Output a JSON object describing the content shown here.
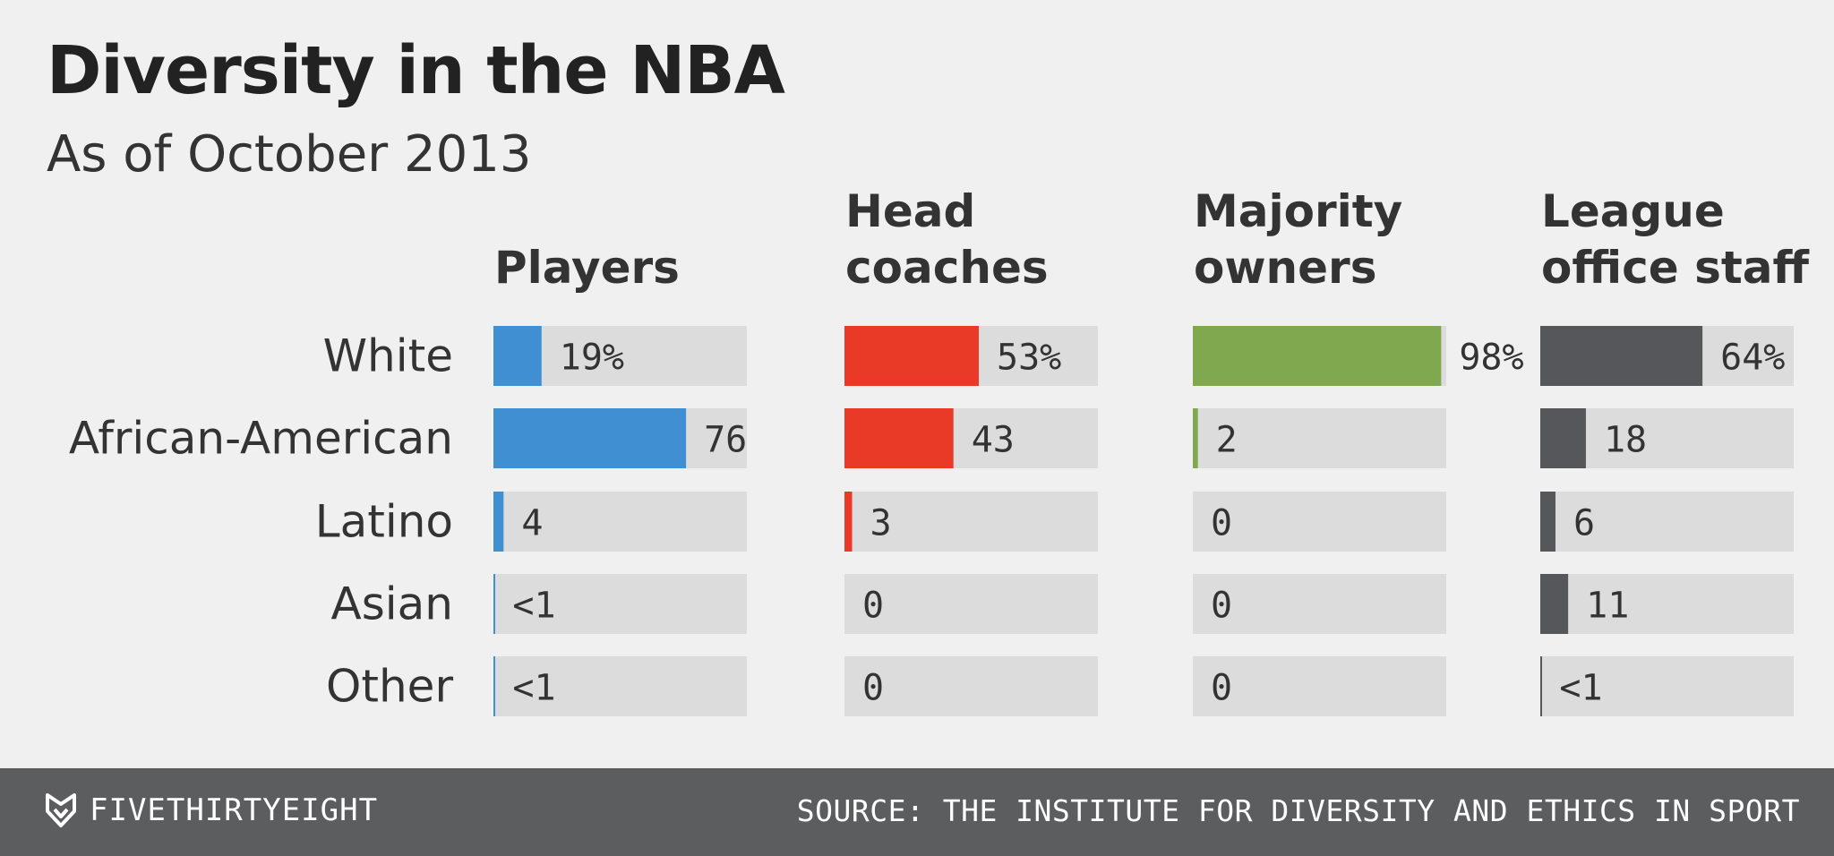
{
  "chart_data": {
    "type": "bar",
    "title": "Diversity in the NBA",
    "subtitle": "As of October 2013",
    "xlim": [
      0,
      100
    ],
    "categories": [
      "White",
      "African-American",
      "Latino",
      "Asian",
      "Other"
    ],
    "series": [
      {
        "name": "Players",
        "color": "#3f8fd2",
        "values": [
          19,
          76,
          4,
          0.5,
          0.5
        ],
        "labels": [
          "19%",
          "76",
          "4",
          "<1",
          "<1"
        ]
      },
      {
        "name": "Head coaches",
        "color": "#e83a26",
        "values": [
          53,
          43,
          3,
          0,
          0
        ],
        "labels": [
          "53%",
          "43",
          "3",
          "0",
          "0"
        ]
      },
      {
        "name": "Majority owners",
        "color": "#7fa84f",
        "values": [
          98,
          2,
          0,
          0,
          0
        ],
        "labels": [
          "98%",
          "2",
          "0",
          "0",
          "0"
        ]
      },
      {
        "name": "League office staff",
        "color": "#56575a",
        "values": [
          64,
          18,
          6,
          11,
          0.5
        ],
        "labels": [
          "64%",
          "18",
          "6",
          "11",
          "<1"
        ]
      }
    ]
  },
  "footer": {
    "brand": "FIVETHIRTYEIGHT",
    "brand_icon": "fivethirtyeight-fox-icon",
    "source": "SOURCE: THE INSTITUTE FOR DIVERSITY AND ETHICS IN SPORT"
  }
}
